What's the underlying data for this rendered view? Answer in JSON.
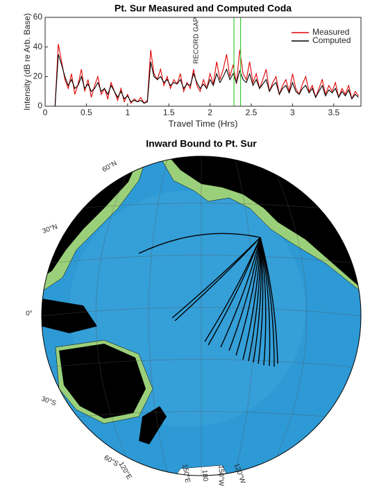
{
  "chart_data": [
    {
      "type": "line",
      "title": "Pt. Sur Measured and Computed Coda",
      "x_label": "Travel Time (Hrs)",
      "y_label": "Intensity (dB re Arb. Base)",
      "x": [
        0,
        0.04,
        0.08,
        0.12,
        0.16,
        0.2,
        0.24,
        0.28,
        0.32,
        0.36,
        0.4,
        0.44,
        0.48,
        0.52,
        0.56,
        0.6,
        0.64,
        0.68,
        0.72,
        0.76,
        0.8,
        0.84,
        0.88,
        0.92,
        0.96,
        1,
        1.04,
        1.08,
        1.12,
        1.16,
        1.2,
        1.24,
        1.28,
        1.32,
        1.36,
        1.4,
        1.44,
        1.48,
        1.52,
        1.56,
        1.6,
        1.64,
        1.68,
        1.72,
        1.76,
        1.8,
        1.84,
        1.88,
        1.92,
        1.96,
        2,
        2.04,
        2.08,
        2.12,
        2.16,
        2.2,
        2.24,
        2.28,
        2.32,
        2.36,
        2.4,
        2.44,
        2.48,
        2.52,
        2.56,
        2.6,
        2.64,
        2.68,
        2.72,
        2.76,
        2.8,
        2.84,
        2.88,
        2.92,
        2.96,
        3,
        3.04,
        3.08,
        3.12,
        3.16,
        3.2,
        3.24,
        3.28,
        3.32,
        3.36,
        3.4,
        3.44,
        3.48,
        3.52,
        3.56,
        3.6,
        3.64,
        3.68,
        3.72,
        3.76,
        3.8
      ],
      "series": [
        {
          "name": "Measured",
          "color": "#e00000",
          "values": [
            0,
            0,
            0,
            0,
            42,
            30,
            18,
            12,
            22,
            8,
            15,
            25,
            10,
            18,
            6,
            14,
            20,
            8,
            12,
            5,
            16,
            10,
            4,
            12,
            3,
            8,
            2,
            5,
            3,
            6,
            2,
            4,
            38,
            22,
            18,
            25,
            14,
            20,
            12,
            18,
            15,
            22,
            10,
            16,
            12,
            25,
            14,
            10,
            18,
            12,
            22,
            15,
            30,
            18,
            25,
            35,
            20,
            28,
            15,
            38,
            22,
            18,
            30,
            16,
            22,
            12,
            18,
            25,
            10,
            16,
            20,
            8,
            14,
            18,
            10,
            22,
            12,
            8,
            15,
            20,
            10,
            14,
            6,
            12,
            18,
            8,
            14,
            10,
            16,
            6,
            12,
            8,
            14,
            5,
            10,
            7
          ]
        },
        {
          "name": "Computed",
          "color": "#000000",
          "values": [
            0,
            0,
            0,
            0,
            35,
            28,
            20,
            14,
            18,
            12,
            14,
            20,
            12,
            15,
            10,
            12,
            16,
            10,
            12,
            8,
            14,
            10,
            6,
            10,
            5,
            7,
            3,
            4,
            3,
            4,
            2,
            3,
            30,
            20,
            18,
            20,
            16,
            18,
            14,
            16,
            15,
            18,
            12,
            15,
            14,
            22,
            16,
            12,
            15,
            12,
            18,
            14,
            22,
            16,
            20,
            25,
            18,
            22,
            16,
            24,
            18,
            16,
            22,
            14,
            18,
            12,
            15,
            18,
            10,
            14,
            16,
            8,
            12,
            14,
            9,
            16,
            10,
            8,
            12,
            14,
            9,
            12,
            6,
            10,
            14,
            7,
            11,
            9,
            12,
            6,
            10,
            7,
            11,
            5,
            8,
            6
          ]
        }
      ],
      "xlim": [
        0,
        3.83
      ],
      "xticks": [
        0,
        0.5,
        1,
        1.5,
        2,
        2.5,
        3,
        3.5
      ],
      "ylim": [
        0,
        60
      ],
      "yticks": [
        0,
        20,
        40,
        60
      ],
      "vlines": [
        2.29,
        2.37
      ],
      "vline_color": "#33cc33",
      "annotations": [
        {
          "text": "RECORD GAP",
          "x": 1.8
        }
      ],
      "legend": "upper right"
    },
    {
      "type": "map",
      "title": "Inward Bound to Pt. Sur",
      "labels": [
        "60°N",
        "30°N",
        "0°",
        "30°S",
        "60°S",
        "120°E",
        "150°E",
        "180",
        "150°W",
        "120°W"
      ]
    }
  ]
}
